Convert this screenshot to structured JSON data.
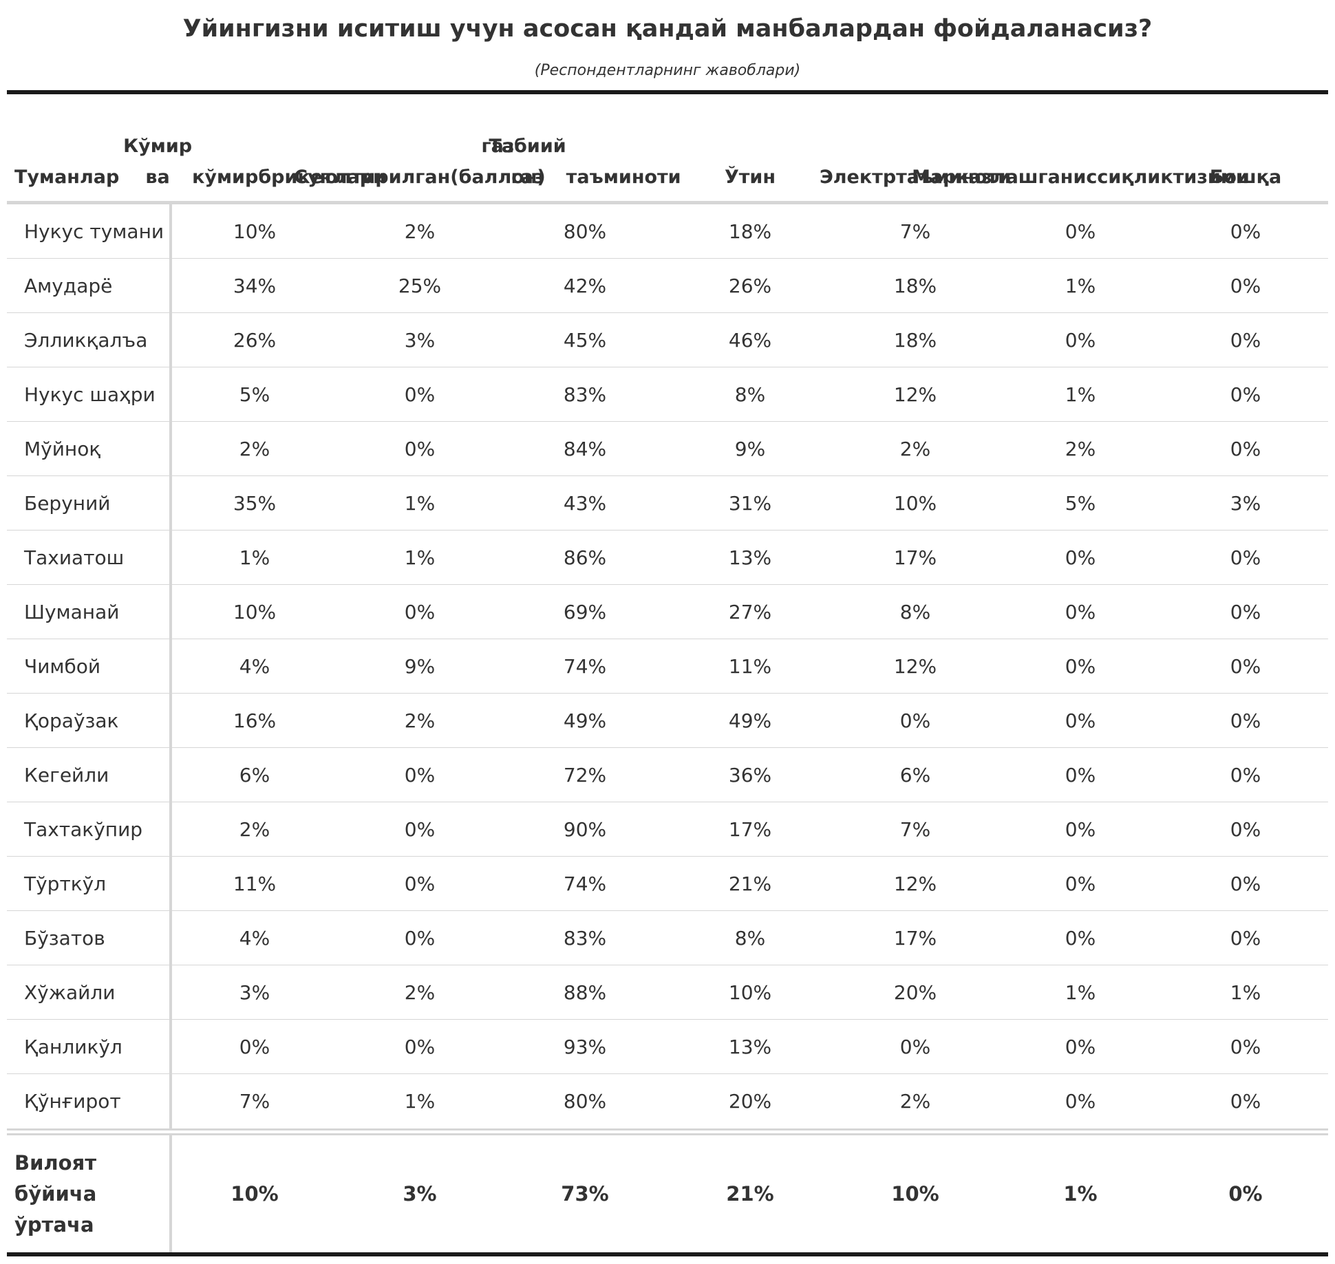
{
  "title": "Уйингизни иситиш учун асосан қандай манбалардан фойдаланасиз?",
  "subtitle": "(Респондентларнинг жавоблари)",
  "chart_data": {
    "type": "table",
    "columns": [
      "Туманлар",
      "Кўмир ва кўмир брикетлари",
      "Суюлтирилган газ (баллон)",
      "Табиий газ таъминоти",
      "Ўтин",
      "Электр таъминоти",
      "Марказлашган иссиқлик тизими",
      "Бошқа"
    ],
    "rows": [
      {
        "label": "Нукус тумани",
        "values": [
          "10%",
          "2%",
          "80%",
          "18%",
          "7%",
          "0%",
          "0%"
        ]
      },
      {
        "label": "Амударё",
        "values": [
          "34%",
          "25%",
          "42%",
          "26%",
          "18%",
          "1%",
          "0%"
        ]
      },
      {
        "label": "Элликқалъа",
        "values": [
          "26%",
          "3%",
          "45%",
          "46%",
          "18%",
          "0%",
          "0%"
        ]
      },
      {
        "label": "Нукус шаҳри",
        "values": [
          "5%",
          "0%",
          "83%",
          "8%",
          "12%",
          "1%",
          "0%"
        ]
      },
      {
        "label": "Мўйноқ",
        "values": [
          "2%",
          "0%",
          "84%",
          "9%",
          "2%",
          "2%",
          "0%"
        ]
      },
      {
        "label": "Беруний",
        "values": [
          "35%",
          "1%",
          "43%",
          "31%",
          "10%",
          "5%",
          "3%"
        ]
      },
      {
        "label": "Тахиатош",
        "values": [
          "1%",
          "1%",
          "86%",
          "13%",
          "17%",
          "0%",
          "0%"
        ]
      },
      {
        "label": "Шуманай",
        "values": [
          "10%",
          "0%",
          "69%",
          "27%",
          "8%",
          "0%",
          "0%"
        ]
      },
      {
        "label": "Чимбой",
        "values": [
          "4%",
          "9%",
          "74%",
          "11%",
          "12%",
          "0%",
          "0%"
        ]
      },
      {
        "label": "Қораўзак",
        "values": [
          "16%",
          "2%",
          "49%",
          "49%",
          "0%",
          "0%",
          "0%"
        ]
      },
      {
        "label": "Кегейли",
        "values": [
          "6%",
          "0%",
          "72%",
          "36%",
          "6%",
          "0%",
          "0%"
        ]
      },
      {
        "label": "Тахтакўпир",
        "values": [
          "2%",
          "0%",
          "90%",
          "17%",
          "7%",
          "0%",
          "0%"
        ]
      },
      {
        "label": "Тўрткўл",
        "values": [
          "11%",
          "0%",
          "74%",
          "21%",
          "12%",
          "0%",
          "0%"
        ]
      },
      {
        "label": "Бўзатов",
        "values": [
          "4%",
          "0%",
          "83%",
          "8%",
          "17%",
          "0%",
          "0%"
        ]
      },
      {
        "label": "Хўжайли",
        "values": [
          "3%",
          "2%",
          "88%",
          "10%",
          "20%",
          "1%",
          "1%"
        ]
      },
      {
        "label": "Қанликўл",
        "values": [
          "0%",
          "0%",
          "93%",
          "13%",
          "0%",
          "0%",
          "0%"
        ]
      },
      {
        "label": "Қўнғирот",
        "values": [
          "7%",
          "1%",
          "80%",
          "20%",
          "2%",
          "0%",
          "0%"
        ]
      }
    ],
    "footer": {
      "label": "Вилоят бўйича ўртача",
      "values": [
        "10%",
        "3%",
        "73%",
        "21%",
        "10%",
        "1%",
        "0%"
      ]
    }
  }
}
